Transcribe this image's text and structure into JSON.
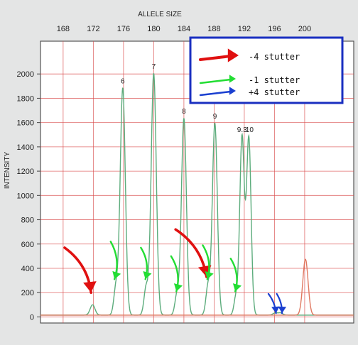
{
  "chart_data": {
    "type": "line",
    "title": "ALLELE SIZE",
    "ylabel": "INTENSITY",
    "xlim": [
      165,
      206.5
    ],
    "ylim": [
      -50,
      2270
    ],
    "x_ticks": [
      168,
      172,
      176,
      180,
      184,
      188,
      192,
      196,
      200
    ],
    "x_tick_labels": [
      "168",
      "172",
      "176",
      "180",
      "184",
      "188",
      "192",
      "196",
      "200"
    ],
    "y_ticks": [
      0,
      200,
      400,
      600,
      800,
      1000,
      1200,
      1400,
      1600,
      1800,
      2000
    ],
    "y_tick_labels": [
      "0",
      "200",
      "400",
      "600",
      "800",
      "1000",
      "1200",
      "1400",
      "1600",
      "1800",
      "2000"
    ],
    "grid": true,
    "colors": {
      "background": "#e4e5e5",
      "plot_background": "#ffffff",
      "grid": "#d94a4a",
      "frame": "#555555",
      "green_trace": "#5cac7c",
      "red_trace": "#e07860",
      "red_arrow": "#e01010",
      "green_arrow": "#22dd33",
      "blue_arrow": "#1a3fd0",
      "legend_border": "#1a2fc0"
    },
    "series": [
      {
        "color": "green",
        "peaks": [
          {
            "x": 171.9,
            "y": 85,
            "w": 0.32
          },
          {
            "x": 175.0,
            "y": 230,
            "w": 0.28
          },
          {
            "x": 175.9,
            "y": 1870,
            "w": 0.34
          },
          {
            "x": 179.0,
            "y": 230,
            "w": 0.28
          },
          {
            "x": 180.0,
            "y": 1990,
            "w": 0.34
          },
          {
            "x": 183.1,
            "y": 175,
            "w": 0.28
          },
          {
            "x": 184.0,
            "y": 1620,
            "w": 0.33
          },
          {
            "x": 187.2,
            "y": 240,
            "w": 0.28
          },
          {
            "x": 188.1,
            "y": 1580,
            "w": 0.33
          },
          {
            "x": 190.9,
            "y": 150,
            "w": 0.26
          },
          {
            "x": 191.7,
            "y": 1470,
            "w": 0.3
          },
          {
            "x": 192.6,
            "y": 1460,
            "w": 0.3
          },
          {
            "x": 196.1,
            "y": 18,
            "w": 0.3
          },
          {
            "x": 196.8,
            "y": 18,
            "w": 0.3
          }
        ]
      },
      {
        "color": "red",
        "peaks": [
          {
            "x": 200.1,
            "y": 460,
            "w": 0.35
          }
        ]
      }
    ],
    "peak_labels": [
      {
        "text": "6",
        "x": 175.9,
        "y": 1870
      },
      {
        "text": "7",
        "x": 180.0,
        "y": 1990
      },
      {
        "text": "8",
        "x": 184.0,
        "y": 1620
      },
      {
        "text": "9",
        "x": 188.1,
        "y": 1580
      },
      {
        "text": "9.3",
        "x": 191.7,
        "y": 1470
      },
      {
        "text": "10",
        "x": 192.7,
        "y": 1470
      }
    ],
    "legend": {
      "position": "top-right",
      "entries": [
        {
          "label": "-4 stutter",
          "color": "red"
        },
        {
          "label": "-1 stutter",
          "color": "green"
        },
        {
          "label": "+4 stutter",
          "color": "blue"
        }
      ]
    },
    "annotations": [
      {
        "type": "red-arrow",
        "from": [
          168.2,
          570
        ],
        "to": [
          171.7,
          200
        ]
      },
      {
        "type": "red-arrow",
        "from": [
          182.9,
          720
        ],
        "to": [
          187.0,
          330
        ]
      },
      {
        "type": "green-arrow",
        "from": [
          174.3,
          620
        ],
        "to": [
          174.8,
          310
        ]
      },
      {
        "type": "green-arrow",
        "from": [
          178.3,
          570
        ],
        "to": [
          178.9,
          310
        ]
      },
      {
        "type": "green-arrow",
        "from": [
          182.3,
          500
        ],
        "to": [
          183.0,
          210
        ]
      },
      {
        "type": "green-arrow",
        "from": [
          186.5,
          590
        ],
        "to": [
          187.1,
          310
        ]
      },
      {
        "type": "green-arrow",
        "from": [
          190.2,
          480
        ],
        "to": [
          190.8,
          210
        ]
      },
      {
        "type": "blue-arrow",
        "from": [
          195.2,
          190
        ],
        "to": [
          196.2,
          30
        ]
      },
      {
        "type": "blue-arrow",
        "from": [
          196.3,
          190
        ],
        "to": [
          197.0,
          30
        ]
      }
    ]
  }
}
